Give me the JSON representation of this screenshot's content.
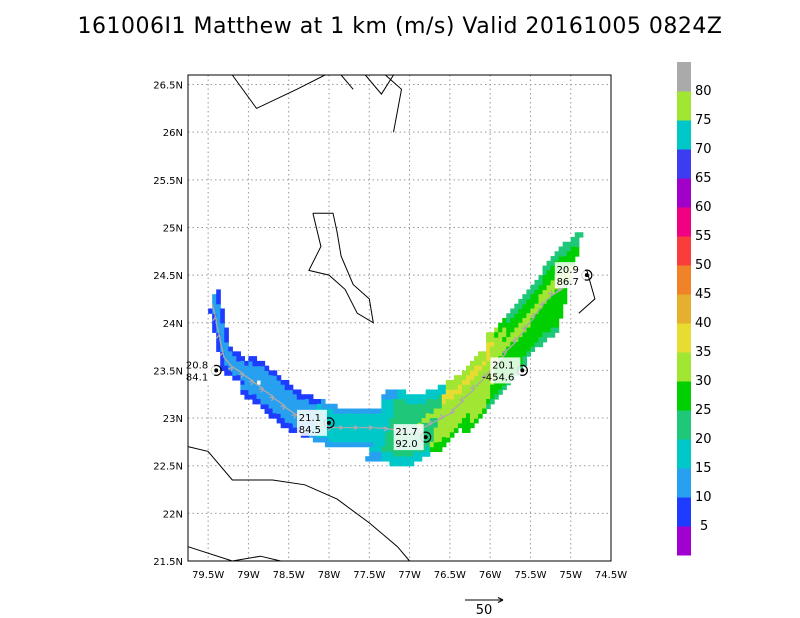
{
  "title": "161006I1 Matthew at 1 km (m/s) Valid 20161005 0824Z",
  "chart_data": {
    "type": "heatmap",
    "title": "161006I1 Matthew at 1 km (m/s) Valid 20161005 0824Z",
    "xlabel": "",
    "ylabel": "",
    "xlim": [
      -79.75,
      -74.5
    ],
    "ylim": [
      21.5,
      26.6
    ],
    "x_ticks": [
      "79.5W",
      "79W",
      "78.5W",
      "78W",
      "77.5W",
      "77W",
      "76.5W",
      "76W",
      "75.5W",
      "75W",
      "74.5W"
    ],
    "y_ticks": [
      "26.5N",
      "26N",
      "25.5N",
      "25N",
      "24.5N",
      "24N",
      "23.5N",
      "23N",
      "22.5N",
      "22N",
      "21.5N"
    ],
    "grid": true,
    "colorbar": {
      "labels": [
        "5",
        "10",
        "15",
        "20",
        "25",
        "30",
        "35",
        "40",
        "45",
        "50",
        "55",
        "60",
        "65",
        "70",
        "75",
        "80"
      ],
      "colors": [
        "#a000d0",
        "#1e3cff",
        "#28a0f0",
        "#00c8c8",
        "#1ec878",
        "#00d000",
        "#a0e632",
        "#e6dc32",
        "#e6af2d",
        "#f08228",
        "#fa3c3c",
        "#f00082",
        "#a000c8",
        "#3c3cf0",
        "#00c8c8",
        "#a0e632",
        "#aaaaaa"
      ]
    },
    "vector_scale_label": "50",
    "centers": [
      {
        "lon": -79.4,
        "lat": 23.5,
        "label1": "20.8",
        "label2": "84.1"
      },
      {
        "lon": -78.0,
        "lat": 22.95,
        "label1": "21.1",
        "label2": "84.5"
      },
      {
        "lon": -76.8,
        "lat": 22.8,
        "label1": "21.7",
        "label2": "92.0"
      },
      {
        "lon": -75.6,
        "lat": 23.5,
        "label1": "20.1",
        "label2": "-454.6"
      },
      {
        "lon": -74.8,
        "lat": 24.5,
        "label1": "20.9",
        "label2": "86.7"
      }
    ]
  }
}
